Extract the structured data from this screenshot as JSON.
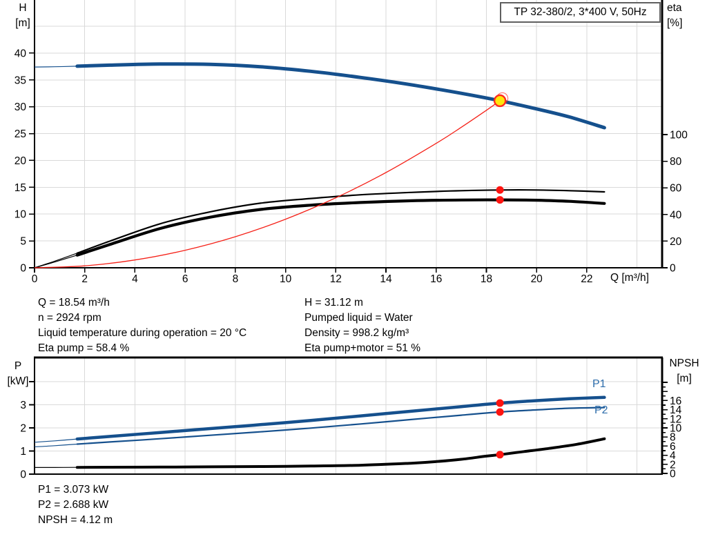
{
  "colors": {
    "curve_blue": "#15508d",
    "curve_black": "#000000",
    "curve_red": "#f52017",
    "dot_red": "#ff1410",
    "duty_fill": "#ffe60a",
    "duty_ring": "#ff2a1e",
    "grid": "#d9d9d9",
    "axis": "#000000",
    "label_blue": "#2d6dab"
  },
  "title_box": {
    "label": "TP 32-380/2, 3*400 V, 50Hz"
  },
  "operating_point_info": {
    "left": [
      "Q = 18.54 m³/h",
      "n = 2924 rpm",
      "Liquid temperature during operation = 20 °C",
      "Eta pump = 58.4 %"
    ],
    "right": [
      "H = 31.12 m",
      "Pumped liquid = Water",
      "Density = 998.2 kg/m³",
      "Eta pump+motor = 51 %"
    ]
  },
  "power_info": [
    "P1 = 3.073 kW",
    "P2 = 2.688 kW",
    "NPSH = 4.12 m"
  ],
  "chart_data": [
    {
      "id": "head",
      "type": "line",
      "title": "TP 32-380/2, 3*400 V, 50Hz",
      "x_axis": {
        "label": "Q [m³/h]",
        "min": 0,
        "max": 25,
        "tick_labels": [
          0,
          2,
          4,
          6,
          8,
          10,
          12,
          14,
          16,
          18,
          20,
          22
        ],
        "grid_ticks": [
          2,
          4,
          6,
          8,
          10,
          12,
          14,
          16,
          18,
          20,
          22,
          24
        ]
      },
      "left_axis": {
        "label": "H",
        "unit": "[m]",
        "min": 0,
        "max": 45,
        "tick_labels": [
          0,
          5,
          10,
          15,
          20,
          25,
          30,
          35,
          40
        ],
        "grid_ticks": [
          5,
          10,
          15,
          20,
          25,
          30,
          35,
          40,
          45
        ]
      },
      "right_axis": {
        "label": "eta",
        "unit": "[%]",
        "min": 0,
        "max": 100,
        "tick_labels": [
          0,
          20,
          40,
          60,
          80,
          100
        ]
      },
      "series": [
        {
          "name": "eta-pump-curve",
          "axis": "right",
          "color": "black",
          "width": 2.2,
          "thin_until": 1.7,
          "points": [
            [
              0,
              0
            ],
            [
              0.8,
              5
            ],
            [
              1.7,
              11
            ],
            [
              3,
              20
            ],
            [
              5,
              33
            ],
            [
              7,
              42
            ],
            [
              9,
              48.5
            ],
            [
              11,
              52
            ],
            [
              13,
              54.8
            ],
            [
              15,
              56.6
            ],
            [
              17,
              57.9
            ],
            [
              18.54,
              58.4
            ],
            [
              20,
              58.4
            ],
            [
              21.3,
              57.9
            ],
            [
              22.7,
              57
            ]
          ]
        },
        {
          "name": "eta-pump-motor-curve",
          "axis": "right",
          "color": "black",
          "width": 4.2,
          "thin_until": 1.7,
          "points": [
            [
              0,
              0
            ],
            [
              0.8,
              4.3
            ],
            [
              1.7,
              9.5
            ],
            [
              3,
              17.5
            ],
            [
              5,
              29.5
            ],
            [
              7,
              38
            ],
            [
              9,
              43.8
            ],
            [
              11,
              47
            ],
            [
              13,
              49
            ],
            [
              15,
              50.3
            ],
            [
              17,
              50.9
            ],
            [
              18.54,
              51
            ],
            [
              20,
              50.7
            ],
            [
              21.3,
              49.9
            ],
            [
              22.7,
              48.3
            ]
          ]
        },
        {
          "name": "system-curve",
          "axis": "left",
          "color": "red",
          "width": 1.3,
          "thin_until": 0,
          "points": [
            [
              0,
              0
            ],
            [
              2,
              0.36
            ],
            [
              4,
              1.45
            ],
            [
              6,
              3.26
            ],
            [
              8,
              5.79
            ],
            [
              10,
              9.05
            ],
            [
              12,
              13.04
            ],
            [
              14,
              17.74
            ],
            [
              16,
              23.18
            ],
            [
              17,
              26.17
            ],
            [
              18,
              29.34
            ],
            [
              18.54,
              31.12
            ]
          ]
        },
        {
          "name": "head-curve",
          "axis": "left",
          "color": "blue",
          "width": 5,
          "thin_until": 1.7,
          "points": [
            [
              0,
              37.4
            ],
            [
              0.8,
              37.45
            ],
            [
              1.7,
              37.55
            ],
            [
              3,
              37.75
            ],
            [
              5,
              37.95
            ],
            [
              7,
              37.9
            ],
            [
              9,
              37.45
            ],
            [
              11,
              36.6
            ],
            [
              13,
              35.45
            ],
            [
              15,
              34.1
            ],
            [
              17,
              32.5
            ],
            [
              18.54,
              31.12
            ],
            [
              20,
              29.6
            ],
            [
              21.3,
              28.1
            ],
            [
              22.7,
              26.1
            ]
          ]
        }
      ],
      "markers": {
        "duty_point": {
          "q": 18.54,
          "h": 31.12
        },
        "dots": [
          {
            "q": 18.54,
            "axis": "right",
            "value": 58.4
          },
          {
            "q": 18.54,
            "axis": "right",
            "value": 51
          }
        ]
      }
    },
    {
      "id": "power",
      "type": "line",
      "top_border": true,
      "x_axis": {
        "label": "",
        "min": 0,
        "max": 25,
        "tick_labels": [],
        "grid_ticks": [
          2,
          4,
          6,
          8,
          10,
          12,
          14,
          16,
          18,
          20,
          22,
          24
        ]
      },
      "left_axis": {
        "label": "P",
        "unit": "[kW]",
        "min": 0,
        "max": 5,
        "tick_labels": [
          0,
          1,
          2,
          3
        ],
        "all_ticks": [
          0,
          1,
          2,
          3,
          4
        ],
        "grid_ticks": [
          1,
          2,
          3,
          4
        ]
      },
      "right_axis": {
        "label": "NPSH",
        "unit": "[m]",
        "min": 0,
        "max": 20,
        "tick_labels": [
          0,
          2,
          4,
          6,
          8,
          10,
          12,
          14,
          16
        ],
        "all_ticks": [
          0,
          1,
          2,
          3,
          4,
          5,
          6,
          7,
          8,
          9,
          10,
          11,
          12,
          13,
          14,
          15,
          16,
          17,
          18,
          19,
          20
        ],
        "minor_odd": true
      },
      "series": [
        {
          "name": "npsh-curve",
          "axis": "right",
          "color": "black",
          "width": 4,
          "thin_until": 1.7,
          "points": [
            [
              0,
              1.3
            ],
            [
              0.8,
              1.31
            ],
            [
              1.7,
              1.33
            ],
            [
              3,
              1.36
            ],
            [
              5,
              1.4
            ],
            [
              7,
              1.45
            ],
            [
              9,
              1.52
            ],
            [
              11,
              1.62
            ],
            [
              13,
              1.8
            ],
            [
              15,
              2.25
            ],
            [
              16,
              2.6
            ],
            [
              17,
              3.1
            ],
            [
              18,
              3.8
            ],
            [
              18.54,
              4.12
            ],
            [
              19.5,
              4.8
            ],
            [
              20.5,
              5.5
            ],
            [
              21.6,
              6.4
            ],
            [
              22.7,
              7.6
            ]
          ]
        },
        {
          "name": "p2-curve",
          "label": "P2",
          "axis": "left",
          "color": "blue",
          "width": 2.2,
          "thin_until": 1.7,
          "points": [
            [
              0,
              1.18
            ],
            [
              0.8,
              1.23
            ],
            [
              1.7,
              1.3
            ],
            [
              3,
              1.39
            ],
            [
              5,
              1.53
            ],
            [
              7,
              1.68
            ],
            [
              9,
              1.83
            ],
            [
              11,
              1.99
            ],
            [
              13,
              2.17
            ],
            [
              15,
              2.36
            ],
            [
              17,
              2.55
            ],
            [
              18.54,
              2.688
            ],
            [
              20,
              2.78
            ],
            [
              21.3,
              2.85
            ],
            [
              22.7,
              2.88
            ]
          ]
        },
        {
          "name": "p1-curve",
          "label": "P1",
          "axis": "left",
          "color": "blue",
          "width": 4.5,
          "thin_until": 1.7,
          "points": [
            [
              0,
              1.38
            ],
            [
              0.8,
              1.44
            ],
            [
              1.7,
              1.52
            ],
            [
              3,
              1.63
            ],
            [
              5,
              1.8
            ],
            [
              7,
              1.97
            ],
            [
              9,
              2.14
            ],
            [
              11,
              2.32
            ],
            [
              13,
              2.52
            ],
            [
              15,
              2.72
            ],
            [
              17,
              2.92
            ],
            [
              18.54,
              3.073
            ],
            [
              20,
              3.18
            ],
            [
              21.3,
              3.26
            ],
            [
              22.7,
              3.32
            ]
          ]
        }
      ],
      "markers": {
        "dots": [
          {
            "q": 18.54,
            "axis": "left",
            "value": 3.073
          },
          {
            "q": 18.54,
            "axis": "left",
            "value": 2.688
          },
          {
            "q": 18.54,
            "axis": "right",
            "value": 4.12
          }
        ]
      }
    }
  ]
}
